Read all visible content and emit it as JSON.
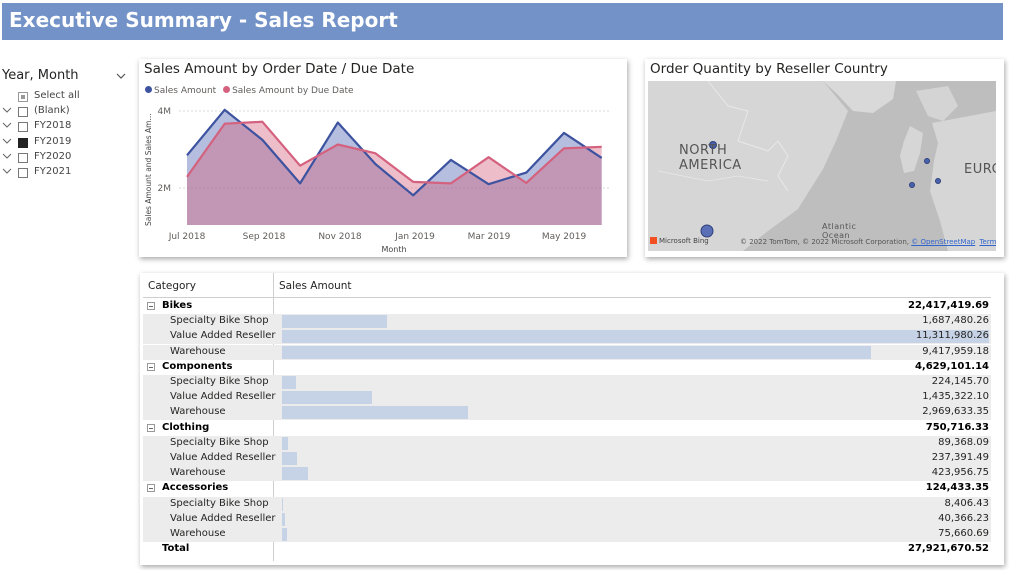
{
  "header": {
    "title": "Executive Summary - Sales Report"
  },
  "slicer": {
    "title": "Year, Month",
    "items": [
      {
        "label": "Select all",
        "state": "partial",
        "expandable": false
      },
      {
        "label": "(Blank)",
        "state": "unchecked",
        "expandable": true
      },
      {
        "label": "FY2018",
        "state": "unchecked",
        "expandable": true
      },
      {
        "label": "FY2019",
        "state": "checked",
        "expandable": true
      },
      {
        "label": "FY2020",
        "state": "unchecked",
        "expandable": true
      },
      {
        "label": "FY2021",
        "state": "unchecked",
        "expandable": true
      }
    ]
  },
  "line_chart": {
    "title": "Sales Amount by Order Date / Due Date",
    "legend": [
      "Sales Amount",
      "Sales Amount by Due Date"
    ],
    "colors": {
      "sales": "#3d53a0",
      "due": "#d4617e"
    },
    "ylabel": "Sales Amount and Sales Am...",
    "xlabel": "Month",
    "y_ticks": [
      "4M",
      "2M"
    ],
    "x_ticks": [
      "Jul 2018",
      "Sep 2018",
      "Nov 2018",
      "Jan 2019",
      "Mar 2019",
      "May 2019"
    ]
  },
  "chart_data": {
    "type": "area",
    "title": "Sales Amount by Order Date / Due Date",
    "xlabel": "Month",
    "ylabel": "Sales Amount and Sales Am...",
    "x": [
      "Jul 2018",
      "Aug 2018",
      "Sep 2018",
      "Oct 2018",
      "Nov 2018",
      "Dec 2018",
      "Jan 2019",
      "Feb 2019",
      "Mar 2019",
      "Apr 2019",
      "May 2019",
      "Jun 2019"
    ],
    "ylim": [
      0.7,
      4.1
    ],
    "y_unit": "M",
    "series": [
      {
        "name": "Sales Amount",
        "values": [
          2.85,
          4.03,
          3.25,
          2.12,
          3.7,
          2.62,
          1.81,
          2.73,
          2.1,
          2.4,
          3.43,
          2.78
        ]
      },
      {
        "name": "Sales Amount by Due Date",
        "values": [
          2.29,
          3.67,
          3.72,
          2.58,
          3.13,
          2.9,
          2.16,
          2.12,
          2.8,
          2.13,
          3.03,
          3.07
        ]
      }
    ]
  },
  "map": {
    "title": "Order Quantity by Reseller Country",
    "labels": [
      "NORTH AMERICA",
      "EURC",
      "Atlantic",
      "Ocean"
    ],
    "attribution_brand": "Microsoft Bing",
    "attribution": "© 2022 TomTom, © 2022 Microsoft Corporation,",
    "attribution_link": "© OpenStreetMap",
    "terms": "Terms"
  },
  "table": {
    "col_category": "Category",
    "col_sales": "Sales Amount",
    "max_value": 11311980.26,
    "groups": [
      {
        "name": "Bikes",
        "total": "22,417,419.69",
        "rows": [
          {
            "name": "Specialty Bike Shop",
            "value": "1,687,480.26",
            "amount": 1687480.26
          },
          {
            "name": "Value Added Reseller",
            "value": "11,311,980.26",
            "amount": 11311980.26
          },
          {
            "name": "Warehouse",
            "value": "9,417,959.18",
            "amount": 9417959.18
          }
        ]
      },
      {
        "name": "Components",
        "total": "4,629,101.14",
        "rows": [
          {
            "name": "Specialty Bike Shop",
            "value": "224,145.70",
            "amount": 224145.7
          },
          {
            "name": "Value Added Reseller",
            "value": "1,435,322.10",
            "amount": 1435322.1
          },
          {
            "name": "Warehouse",
            "value": "2,969,633.35",
            "amount": 2969633.35
          }
        ]
      },
      {
        "name": "Clothing",
        "total": "750,716.33",
        "rows": [
          {
            "name": "Specialty Bike Shop",
            "value": "89,368.09",
            "amount": 89368.09
          },
          {
            "name": "Value Added Reseller",
            "value": "237,391.49",
            "amount": 237391.49
          },
          {
            "name": "Warehouse",
            "value": "423,956.75",
            "amount": 423956.75
          }
        ]
      },
      {
        "name": "Accessories",
        "total": "124,433.35",
        "rows": [
          {
            "name": "Specialty Bike Shop",
            "value": "8,406.43",
            "amount": 8406.43
          },
          {
            "name": "Value Added Reseller",
            "value": "40,366.23",
            "amount": 40366.23
          },
          {
            "name": "Warehouse",
            "value": "75,660.69",
            "amount": 75660.69
          }
        ]
      }
    ],
    "total_label": "Total",
    "total_value": "27,921,670.52"
  }
}
